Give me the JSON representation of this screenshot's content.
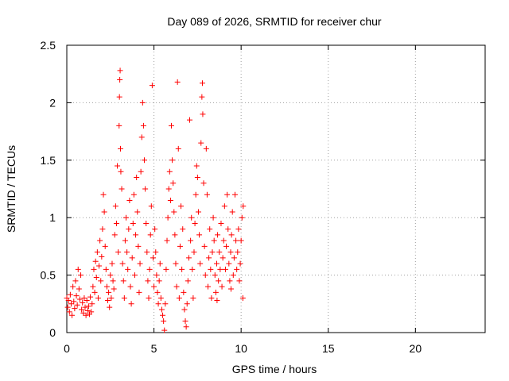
{
  "chart_data": {
    "type": "scatter",
    "title": "Day 089 of 2026, SRMTID for receiver chur",
    "xlabel": "GPS time / hours",
    "ylabel": "SRMTID / TECUs",
    "xlim": [
      0,
      24
    ],
    "ylim": [
      0,
      2.5
    ],
    "xticks": [
      0,
      5,
      10,
      15,
      20
    ],
    "xtick_labels": [
      "0",
      "5",
      "10",
      "15",
      "20"
    ],
    "yticks": [
      0,
      0.5,
      1,
      1.5,
      2,
      2.5
    ],
    "ytick_labels": [
      "0",
      "0.5",
      "1",
      "1.5",
      "2",
      "2.5"
    ],
    "grid": true,
    "marker": "+",
    "color": "#ff0000",
    "series": [
      {
        "name": "SRMTID",
        "points": [
          [
            0.0,
            0.3
          ],
          [
            0.05,
            0.22
          ],
          [
            0.1,
            0.28
          ],
          [
            0.15,
            0.18
          ],
          [
            0.2,
            0.33
          ],
          [
            0.25,
            0.25
          ],
          [
            0.3,
            0.15
          ],
          [
            0.35,
            0.4
          ],
          [
            0.4,
            0.27
          ],
          [
            0.45,
            0.21
          ],
          [
            0.5,
            0.45
          ],
          [
            0.55,
            0.32
          ],
          [
            0.6,
            0.24
          ],
          [
            0.65,
            0.55
          ],
          [
            0.7,
            0.38
          ],
          [
            0.75,
            0.29
          ],
          [
            0.8,
            0.5
          ],
          [
            0.85,
            0.2
          ],
          [
            0.9,
            0.26
          ],
          [
            0.95,
            0.17
          ],
          [
            1.0,
            0.3
          ],
          [
            1.05,
            0.22
          ],
          [
            1.1,
            0.15
          ],
          [
            1.15,
            0.28
          ],
          [
            1.2,
            0.19
          ],
          [
            1.25,
            0.23
          ],
          [
            1.3,
            0.16
          ],
          [
            1.35,
            0.31
          ],
          [
            1.4,
            0.18
          ],
          [
            1.45,
            0.25
          ],
          [
            1.5,
            0.4
          ],
          [
            1.55,
            0.55
          ],
          [
            1.6,
            0.35
          ],
          [
            1.65,
            0.62
          ],
          [
            1.7,
            0.48
          ],
          [
            1.75,
            0.7
          ],
          [
            1.8,
            0.3
          ],
          [
            1.85,
            0.58
          ],
          [
            1.9,
            0.8
          ],
          [
            1.95,
            0.45
          ],
          [
            2.0,
            0.66
          ],
          [
            2.05,
            0.9
          ],
          [
            2.1,
            1.2
          ],
          [
            2.15,
            1.05
          ],
          [
            2.2,
            0.75
          ],
          [
            2.25,
            0.55
          ],
          [
            2.3,
            0.4
          ],
          [
            2.35,
            0.28
          ],
          [
            2.4,
            0.35
          ],
          [
            2.45,
            0.22
          ],
          [
            2.5,
            0.5
          ],
          [
            2.55,
            0.3
          ],
          [
            2.6,
            0.6
          ],
          [
            2.65,
            0.45
          ],
          [
            2.7,
            0.38
          ],
          [
            2.75,
            0.85
          ],
          [
            2.8,
            1.1
          ],
          [
            2.85,
            0.95
          ],
          [
            2.9,
            1.45
          ],
          [
            2.95,
            0.7
          ],
          [
            3.0,
            1.8
          ],
          [
            3.02,
            2.05
          ],
          [
            3.04,
            2.2
          ],
          [
            3.06,
            2.28
          ],
          [
            3.08,
            1.6
          ],
          [
            3.1,
            1.4
          ],
          [
            3.15,
            1.25
          ],
          [
            3.2,
            0.6
          ],
          [
            3.25,
            0.45
          ],
          [
            3.3,
            0.3
          ],
          [
            3.35,
            0.8
          ],
          [
            3.4,
            1.0
          ],
          [
            3.45,
            0.7
          ],
          [
            3.5,
            0.55
          ],
          [
            3.55,
            0.9
          ],
          [
            3.6,
            1.15
          ],
          [
            3.65,
            0.4
          ],
          [
            3.7,
            0.25
          ],
          [
            3.75,
            0.65
          ],
          [
            3.8,
            0.95
          ],
          [
            3.85,
            1.2
          ],
          [
            3.9,
            0.5
          ],
          [
            3.95,
            0.85
          ],
          [
            4.0,
            1.35
          ],
          [
            4.05,
            1.05
          ],
          [
            4.1,
            0.75
          ],
          [
            4.15,
            0.35
          ],
          [
            4.2,
            0.6
          ],
          [
            4.25,
            1.4
          ],
          [
            4.3,
            1.7
          ],
          [
            4.35,
            2.0
          ],
          [
            4.4,
            1.8
          ],
          [
            4.45,
            1.5
          ],
          [
            4.5,
            1.25
          ],
          [
            4.55,
            0.95
          ],
          [
            4.6,
            0.7
          ],
          [
            4.65,
            0.45
          ],
          [
            4.7,
            0.3
          ],
          [
            4.75,
            0.55
          ],
          [
            4.8,
            0.85
          ],
          [
            4.85,
            1.1
          ],
          [
            4.9,
            2.15
          ],
          [
            4.95,
            0.65
          ],
          [
            5.0,
            0.4
          ],
          [
            5.05,
            0.9
          ],
          [
            5.1,
            0.7
          ],
          [
            5.15,
            0.5
          ],
          [
            5.2,
            0.35
          ],
          [
            5.25,
            0.25
          ],
          [
            5.3,
            0.45
          ],
          [
            5.35,
            0.6
          ],
          [
            5.4,
            0.3
          ],
          [
            5.45,
            0.2
          ],
          [
            5.5,
            0.15
          ],
          [
            5.55,
            0.1
          ],
          [
            5.6,
            0.02
          ],
          [
            5.65,
            0.25
          ],
          [
            5.7,
            0.55
          ],
          [
            5.75,
            0.8
          ],
          [
            5.8,
            1.0
          ],
          [
            5.85,
            1.25
          ],
          [
            5.9,
            1.4
          ],
          [
            5.95,
            1.15
          ],
          [
            6.0,
            1.8
          ],
          [
            6.05,
            1.5
          ],
          [
            6.1,
            1.3
          ],
          [
            6.15,
            1.05
          ],
          [
            6.2,
            0.85
          ],
          [
            6.25,
            0.6
          ],
          [
            6.3,
            0.4
          ],
          [
            6.35,
            2.18
          ],
          [
            6.4,
            1.6
          ],
          [
            6.45,
            0.3
          ],
          [
            6.5,
            0.75
          ],
          [
            6.55,
            1.1
          ],
          [
            6.6,
            0.55
          ],
          [
            6.65,
            0.9
          ],
          [
            6.7,
            0.35
          ],
          [
            6.75,
            0.2
          ],
          [
            6.8,
            0.1
          ],
          [
            6.85,
            0.05
          ],
          [
            6.9,
            0.25
          ],
          [
            6.95,
            0.45
          ],
          [
            7.0,
            0.65
          ],
          [
            7.05,
            1.85
          ],
          [
            7.1,
            0.8
          ],
          [
            7.15,
            1.0
          ],
          [
            7.2,
            0.55
          ],
          [
            7.25,
            0.3
          ],
          [
            7.3,
            0.7
          ],
          [
            7.35,
            0.95
          ],
          [
            7.4,
            1.2
          ],
          [
            7.45,
            1.45
          ],
          [
            7.5,
            1.35
          ],
          [
            7.55,
            1.05
          ],
          [
            7.6,
            0.85
          ],
          [
            7.65,
            0.6
          ],
          [
            7.7,
            1.65
          ],
          [
            7.75,
            2.05
          ],
          [
            7.78,
            2.17
          ],
          [
            7.8,
            1.9
          ],
          [
            7.85,
            1.3
          ],
          [
            7.9,
            0.75
          ],
          [
            7.95,
            0.5
          ],
          [
            8.0,
            1.6
          ],
          [
            8.05,
            1.2
          ],
          [
            8.1,
            0.4
          ],
          [
            8.15,
            0.65
          ],
          [
            8.2,
            0.9
          ],
          [
            8.25,
            0.55
          ],
          [
            8.3,
            0.3
          ],
          [
            8.35,
            0.7
          ],
          [
            8.4,
            1.0
          ],
          [
            8.45,
            0.8
          ],
          [
            8.5,
            0.5
          ],
          [
            8.55,
            0.35
          ],
          [
            8.6,
            0.6
          ],
          [
            8.65,
            0.85
          ],
          [
            8.7,
            0.45
          ],
          [
            8.75,
            0.7
          ],
          [
            8.8,
            0.55
          ],
          [
            8.85,
            0.95
          ],
          [
            8.9,
            0.4
          ],
          [
            8.95,
            0.65
          ],
          [
            9.0,
            0.8
          ],
          [
            9.05,
            1.1
          ],
          [
            9.1,
            0.55
          ],
          [
            9.15,
            0.75
          ],
          [
            9.2,
            1.2
          ],
          [
            9.25,
            0.9
          ],
          [
            9.3,
            0.6
          ],
          [
            9.35,
            0.45
          ],
          [
            9.4,
            0.7
          ],
          [
            9.45,
            0.85
          ],
          [
            9.5,
            1.05
          ],
          [
            9.55,
            0.5
          ],
          [
            9.6,
            0.65
          ],
          [
            9.65,
            1.2
          ],
          [
            9.7,
            0.8
          ],
          [
            9.75,
            0.55
          ],
          [
            9.8,
            0.7
          ],
          [
            9.85,
            0.9
          ],
          [
            9.9,
            0.45
          ],
          [
            9.95,
            0.6
          ],
          [
            10.0,
            0.8
          ],
          [
            10.05,
            1.0
          ],
          [
            10.1,
            0.3
          ],
          [
            10.12,
            1.1
          ],
          [
            9.42,
            0.38
          ],
          [
            8.62,
            0.28
          ]
        ]
      }
    ]
  }
}
